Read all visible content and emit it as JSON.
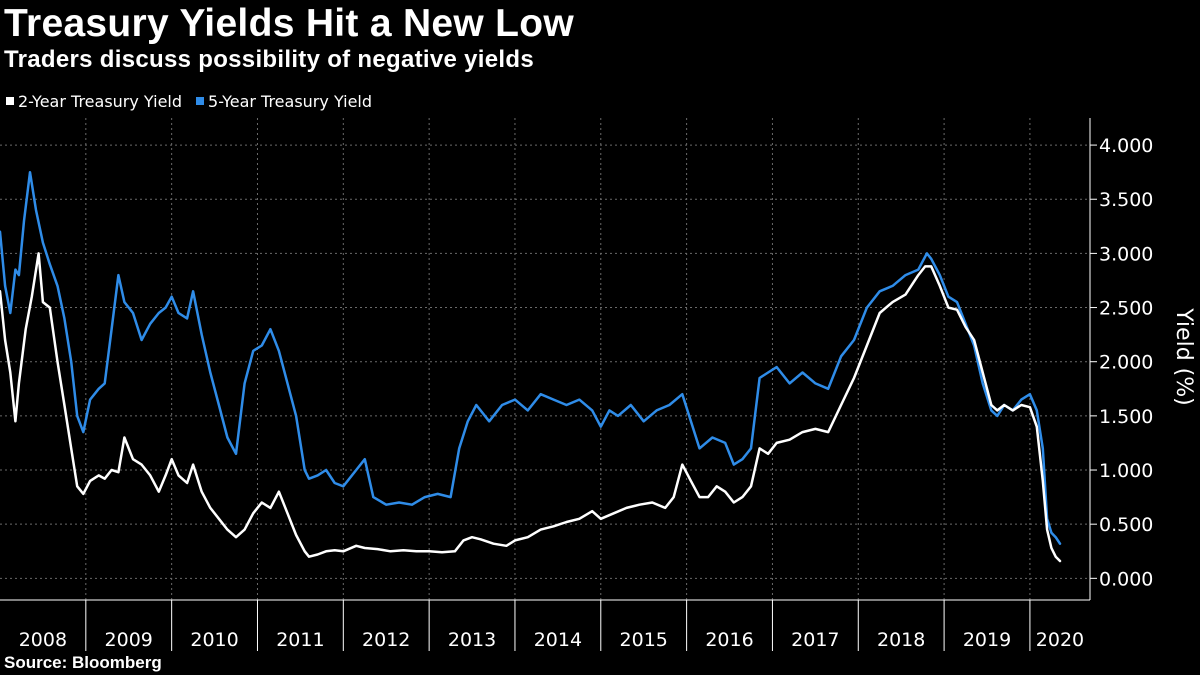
{
  "title": "Treasury Yields Hit a New Low",
  "subtitle": "Traders discuss possibility of negative yields",
  "source": "Source: Bloomberg",
  "colors": {
    "background": "#000000",
    "text": "#ffffff",
    "two_year": "#ffffff",
    "five_year": "#2f8ce8",
    "grid": "#6a6a6a"
  },
  "chart_data": {
    "type": "line",
    "title": "Treasury Yields Hit a New Low",
    "subtitle": "Traders discuss possibility of negative yields",
    "xlabel": "",
    "ylabel": "Yield (%)",
    "xlim": [
      2008.0,
      2020.7
    ],
    "ylim": [
      -0.2,
      4.25
    ],
    "y_ticks": [
      0,
      0.5,
      1,
      1.5,
      2,
      2.5,
      3,
      3.5,
      4
    ],
    "y_tick_labels": [
      "0.000",
      "0.500",
      "1.000",
      "1.500",
      "2.000",
      "2.500",
      "3.000",
      "3.500",
      "4.000"
    ],
    "x_tick_labels": [
      "2008",
      "2009",
      "2010",
      "2011",
      "2012",
      "2013",
      "2014",
      "2015",
      "2016",
      "2017",
      "2018",
      "2019",
      "2020"
    ],
    "year_boundaries": [
      2009,
      2010,
      2011,
      2012,
      2013,
      2014,
      2015,
      2016,
      2017,
      2018,
      2019,
      2020
    ],
    "grid": true,
    "legend_position": "top-left",
    "series": [
      {
        "name": "2-Year Treasury Yield",
        "color": "#ffffff",
        "x": [
          2008.0,
          2008.06,
          2008.12,
          2008.18,
          2008.22,
          2008.3,
          2008.37,
          2008.45,
          2008.5,
          2008.58,
          2008.67,
          2008.75,
          2008.83,
          2008.9,
          2008.97,
          2009.05,
          2009.15,
          2009.22,
          2009.3,
          2009.38,
          2009.45,
          2009.55,
          2009.65,
          2009.75,
          2009.85,
          2009.93,
          2010.0,
          2010.08,
          2010.18,
          2010.25,
          2010.35,
          2010.45,
          2010.55,
          2010.65,
          2010.75,
          2010.85,
          2010.95,
          2011.05,
          2011.15,
          2011.25,
          2011.35,
          2011.45,
          2011.55,
          2011.6,
          2011.7,
          2011.8,
          2011.9,
          2012.0,
          2012.15,
          2012.25,
          2012.4,
          2012.55,
          2012.7,
          2012.85,
          2013.0,
          2013.15,
          2013.3,
          2013.4,
          2013.5,
          2013.6,
          2013.75,
          2013.9,
          2014.0,
          2014.15,
          2014.3,
          2014.45,
          2014.6,
          2014.75,
          2014.9,
          2015.0,
          2015.15,
          2015.3,
          2015.45,
          2015.6,
          2015.75,
          2015.85,
          2015.95,
          2016.05,
          2016.15,
          2016.25,
          2016.35,
          2016.45,
          2016.55,
          2016.65,
          2016.75,
          2016.85,
          2016.95,
          2017.05,
          2017.2,
          2017.35,
          2017.5,
          2017.65,
          2017.8,
          2017.95,
          2018.1,
          2018.25,
          2018.4,
          2018.55,
          2018.7,
          2018.78,
          2018.85,
          2018.95,
          2019.05,
          2019.15,
          2019.25,
          2019.35,
          2019.45,
          2019.55,
          2019.62,
          2019.7,
          2019.8,
          2019.9,
          2020.0,
          2020.08,
          2020.15,
          2020.2,
          2020.25,
          2020.3,
          2020.35
        ],
        "y": [
          2.65,
          2.2,
          1.9,
          1.45,
          1.8,
          2.3,
          2.6,
          3.0,
          2.55,
          2.5,
          2.0,
          1.6,
          1.2,
          0.85,
          0.78,
          0.9,
          0.95,
          0.92,
          1.0,
          0.98,
          1.3,
          1.1,
          1.05,
          0.95,
          0.8,
          0.95,
          1.1,
          0.95,
          0.88,
          1.05,
          0.8,
          0.65,
          0.55,
          0.45,
          0.38,
          0.45,
          0.6,
          0.7,
          0.65,
          0.8,
          0.6,
          0.4,
          0.25,
          0.2,
          0.22,
          0.25,
          0.26,
          0.25,
          0.3,
          0.28,
          0.27,
          0.25,
          0.26,
          0.25,
          0.25,
          0.24,
          0.25,
          0.35,
          0.38,
          0.36,
          0.32,
          0.3,
          0.35,
          0.38,
          0.45,
          0.48,
          0.52,
          0.55,
          0.62,
          0.55,
          0.6,
          0.65,
          0.68,
          0.7,
          0.65,
          0.75,
          1.05,
          0.9,
          0.75,
          0.75,
          0.85,
          0.8,
          0.7,
          0.75,
          0.85,
          1.2,
          1.15,
          1.25,
          1.28,
          1.35,
          1.38,
          1.35,
          1.6,
          1.85,
          2.15,
          2.45,
          2.55,
          2.62,
          2.8,
          2.88,
          2.88,
          2.7,
          2.5,
          2.48,
          2.32,
          2.2,
          1.9,
          1.6,
          1.55,
          1.6,
          1.55,
          1.6,
          1.58,
          1.4,
          0.9,
          0.45,
          0.28,
          0.2,
          0.16
        ]
      },
      {
        "name": "5-Year Treasury Yield",
        "color": "#2f8ce8",
        "x": [
          2008.0,
          2008.06,
          2008.12,
          2008.18,
          2008.22,
          2008.28,
          2008.35,
          2008.42,
          2008.5,
          2008.58,
          2008.67,
          2008.75,
          2008.83,
          2008.9,
          2008.97,
          2009.05,
          2009.15,
          2009.22,
          2009.3,
          2009.38,
          2009.45,
          2009.55,
          2009.65,
          2009.75,
          2009.85,
          2009.93,
          2010.0,
          2010.08,
          2010.18,
          2010.25,
          2010.35,
          2010.45,
          2010.55,
          2010.65,
          2010.75,
          2010.85,
          2010.95,
          2011.05,
          2011.15,
          2011.25,
          2011.35,
          2011.45,
          2011.55,
          2011.6,
          2011.7,
          2011.8,
          2011.9,
          2012.0,
          2012.15,
          2012.25,
          2012.35,
          2012.5,
          2012.65,
          2012.8,
          2012.95,
          2013.1,
          2013.25,
          2013.35,
          2013.45,
          2013.55,
          2013.7,
          2013.85,
          2014.0,
          2014.15,
          2014.3,
          2014.45,
          2014.6,
          2014.75,
          2014.9,
          2015.0,
          2015.1,
          2015.2,
          2015.35,
          2015.5,
          2015.65,
          2015.8,
          2015.95,
          2016.05,
          2016.15,
          2016.3,
          2016.45,
          2016.55,
          2016.65,
          2016.75,
          2016.85,
          2016.95,
          2017.05,
          2017.2,
          2017.35,
          2017.5,
          2017.65,
          2017.8,
          2017.95,
          2018.1,
          2018.25,
          2018.4,
          2018.55,
          2018.7,
          2018.8,
          2018.85,
          2018.95,
          2019.05,
          2019.15,
          2019.25,
          2019.35,
          2019.45,
          2019.55,
          2019.62,
          2019.7,
          2019.8,
          2019.9,
          2020.0,
          2020.08,
          2020.15,
          2020.2,
          2020.25,
          2020.3,
          2020.35
        ],
        "y": [
          3.2,
          2.7,
          2.45,
          2.85,
          2.8,
          3.3,
          3.75,
          3.4,
          3.1,
          2.9,
          2.7,
          2.4,
          2.0,
          1.5,
          1.35,
          1.65,
          1.75,
          1.8,
          2.3,
          2.8,
          2.55,
          2.45,
          2.2,
          2.35,
          2.45,
          2.5,
          2.6,
          2.45,
          2.4,
          2.65,
          2.25,
          1.9,
          1.6,
          1.3,
          1.15,
          1.8,
          2.1,
          2.15,
          2.3,
          2.1,
          1.8,
          1.5,
          1.0,
          0.92,
          0.95,
          1.0,
          0.88,
          0.85,
          1.0,
          1.1,
          0.75,
          0.68,
          0.7,
          0.68,
          0.75,
          0.78,
          0.75,
          1.2,
          1.45,
          1.6,
          1.45,
          1.6,
          1.65,
          1.55,
          1.7,
          1.65,
          1.6,
          1.65,
          1.55,
          1.4,
          1.55,
          1.5,
          1.6,
          1.45,
          1.55,
          1.6,
          1.7,
          1.45,
          1.2,
          1.3,
          1.25,
          1.05,
          1.1,
          1.2,
          1.85,
          1.9,
          1.95,
          1.8,
          1.9,
          1.8,
          1.75,
          2.05,
          2.2,
          2.5,
          2.65,
          2.7,
          2.8,
          2.85,
          3.0,
          2.95,
          2.8,
          2.6,
          2.55,
          2.35,
          2.15,
          1.8,
          1.55,
          1.5,
          1.6,
          1.55,
          1.65,
          1.7,
          1.55,
          1.2,
          0.55,
          0.42,
          0.38,
          0.32
        ]
      }
    ]
  }
}
